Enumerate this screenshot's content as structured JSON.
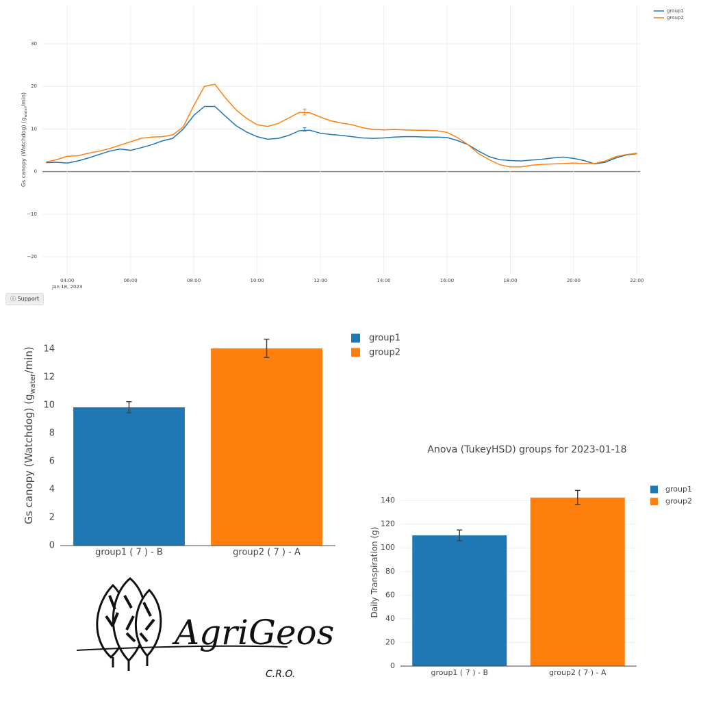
{
  "chart_data": [
    {
      "type": "line",
      "ylabel_parts": [
        "Gs canopy (Watchdog) (g",
        "water",
        "/min)"
      ],
      "x_date_label": "Jan 18, 2023",
      "x": [
        "2023-01-18T03:20",
        "2023-01-18T03:40",
        "2023-01-18T04:00",
        "2023-01-18T04:20",
        "2023-01-18T04:40",
        "2023-01-18T05:00",
        "2023-01-18T05:20",
        "2023-01-18T05:40",
        "2023-01-18T06:00",
        "2023-01-18T06:20",
        "2023-01-18T06:40",
        "2023-01-18T07:00",
        "2023-01-18T07:20",
        "2023-01-18T07:40",
        "2023-01-18T08:00",
        "2023-01-18T08:20",
        "2023-01-18T08:40",
        "2023-01-18T09:00",
        "2023-01-18T09:20",
        "2023-01-18T09:40",
        "2023-01-18T10:00",
        "2023-01-18T10:20",
        "2023-01-18T10:40",
        "2023-01-18T11:00",
        "2023-01-18T11:20",
        "2023-01-18T11:40",
        "2023-01-18T12:00",
        "2023-01-18T12:20",
        "2023-01-18T12:40",
        "2023-01-18T13:00",
        "2023-01-18T13:20",
        "2023-01-18T13:40",
        "2023-01-18T14:00",
        "2023-01-18T14:20",
        "2023-01-18T14:40",
        "2023-01-18T15:00",
        "2023-01-18T15:20",
        "2023-01-18T15:40",
        "2023-01-18T16:00",
        "2023-01-18T16:20",
        "2023-01-18T16:40",
        "2023-01-18T17:00",
        "2023-01-18T17:20",
        "2023-01-18T17:40",
        "2023-01-18T18:00",
        "2023-01-18T18:20",
        "2023-01-18T18:40",
        "2023-01-18T19:00",
        "2023-01-18T19:20",
        "2023-01-18T19:40",
        "2023-01-18T20:00",
        "2023-01-18T20:20",
        "2023-01-18T20:40",
        "2023-01-18T21:00",
        "2023-01-18T21:20",
        "2023-01-18T21:40",
        "2023-01-18T22:00"
      ],
      "series": [
        {
          "name": "group1",
          "color": "#1f77b4",
          "values": [
            2.1,
            2.2,
            2.0,
            2.5,
            3.2,
            4.0,
            4.8,
            5.3,
            5.0,
            5.6,
            6.3,
            7.2,
            7.8,
            10.0,
            13.2,
            15.3,
            15.3,
            13.0,
            10.8,
            9.3,
            8.2,
            7.6,
            7.8,
            8.5,
            9.6,
            9.7,
            9.0,
            8.7,
            8.5,
            8.2,
            7.9,
            7.8,
            7.9,
            8.1,
            8.2,
            8.2,
            8.1,
            8.1,
            8.0,
            7.3,
            6.3,
            4.8,
            3.5,
            2.8,
            2.6,
            2.5,
            2.7,
            2.9,
            3.2,
            3.4,
            3.1,
            2.6,
            1.8,
            2.2,
            3.2,
            3.9,
            4.2
          ],
          "error_point": {
            "x": "2023-01-18T11:30",
            "value": 9.9,
            "error": 0.4
          }
        },
        {
          "name": "group2",
          "color": "#ff7f0e",
          "values": [
            2.3,
            2.8,
            3.6,
            3.7,
            4.3,
            4.8,
            5.4,
            6.2,
            7.0,
            7.8,
            8.1,
            8.2,
            8.6,
            10.5,
            15.5,
            20.0,
            20.5,
            17.3,
            14.5,
            12.5,
            11.0,
            10.6,
            11.3,
            12.6,
            13.9,
            13.8,
            12.8,
            11.9,
            11.4,
            11.0,
            10.3,
            9.9,
            9.8,
            9.9,
            9.8,
            9.7,
            9.7,
            9.6,
            9.2,
            8.0,
            6.3,
            4.2,
            2.8,
            1.6,
            1.1,
            1.1,
            1.5,
            1.7,
            1.8,
            1.9,
            2.0,
            1.9,
            1.9,
            2.5,
            3.5,
            4.0,
            4.3
          ],
          "error_point": {
            "x": "2023-01-18T11:30",
            "value": 14.0,
            "error": 0.7
          }
        }
      ],
      "xlim": [
        "2023-01-18T03:13",
        "2023-01-18T22:06"
      ],
      "xticks": [
        {
          "value": "2023-01-18T04:00",
          "label": "04:00"
        },
        {
          "value": "2023-01-18T06:00",
          "label": "06:00"
        },
        {
          "value": "2023-01-18T08:00",
          "label": "08:00"
        },
        {
          "value": "2023-01-18T10:00",
          "label": "10:00"
        },
        {
          "value": "2023-01-18T12:00",
          "label": "12:00"
        },
        {
          "value": "2023-01-18T14:00",
          "label": "14:00"
        },
        {
          "value": "2023-01-18T16:00",
          "label": "16:00"
        },
        {
          "value": "2023-01-18T18:00",
          "label": "18:00"
        },
        {
          "value": "2023-01-18T20:00",
          "label": "20:00"
        },
        {
          "value": "2023-01-18T22:00",
          "label": "22:00"
        }
      ],
      "ylim": [
        -24,
        39
      ],
      "yticks": [
        {
          "value": -20,
          "label": "−20"
        },
        {
          "value": -10,
          "label": "−10"
        },
        0,
        10,
        20,
        30
      ],
      "grid": true,
      "legend": "top-right"
    },
    {
      "type": "bar",
      "ylabel_parts": [
        "Gs canopy (Watchdog) (g",
        "water",
        "/min)"
      ],
      "categories": [
        "group1 ( 7 ) - B",
        "group2 ( 7 ) - A"
      ],
      "values": [
        9.85,
        14.05
      ],
      "errors": [
        0.4,
        0.65
      ],
      "colors": [
        "#1f77b4",
        "#ff7f0e"
      ],
      "legend": [
        "group1",
        "group2"
      ],
      "ylim": [
        0,
        15.7
      ],
      "yticks": [
        0,
        2,
        4,
        6,
        8,
        10,
        12,
        14
      ],
      "grid": false
    },
    {
      "type": "bar",
      "title": "Anova (TukeyHSD) groups for 2023-01-18",
      "ylabel_parts": [
        "Daily Transpiration (g)"
      ],
      "categories": [
        "group1 ( 7 ) - B",
        "group2 ( 7 ) - A"
      ],
      "values": [
        110.5,
        142.5
      ],
      "errors": [
        4.5,
        6
      ],
      "colors": [
        "#1f77b4",
        "#ff7f0e"
      ],
      "legend": [
        "group1",
        "group2"
      ],
      "ylim": [
        0,
        158
      ],
      "yticks": [
        0,
        20,
        40,
        60,
        80,
        100,
        120,
        140
      ],
      "grid": true
    }
  ],
  "support_button": "Support",
  "logo": {
    "name": "AgriGeos",
    "subtitle": "C.R.O."
  }
}
